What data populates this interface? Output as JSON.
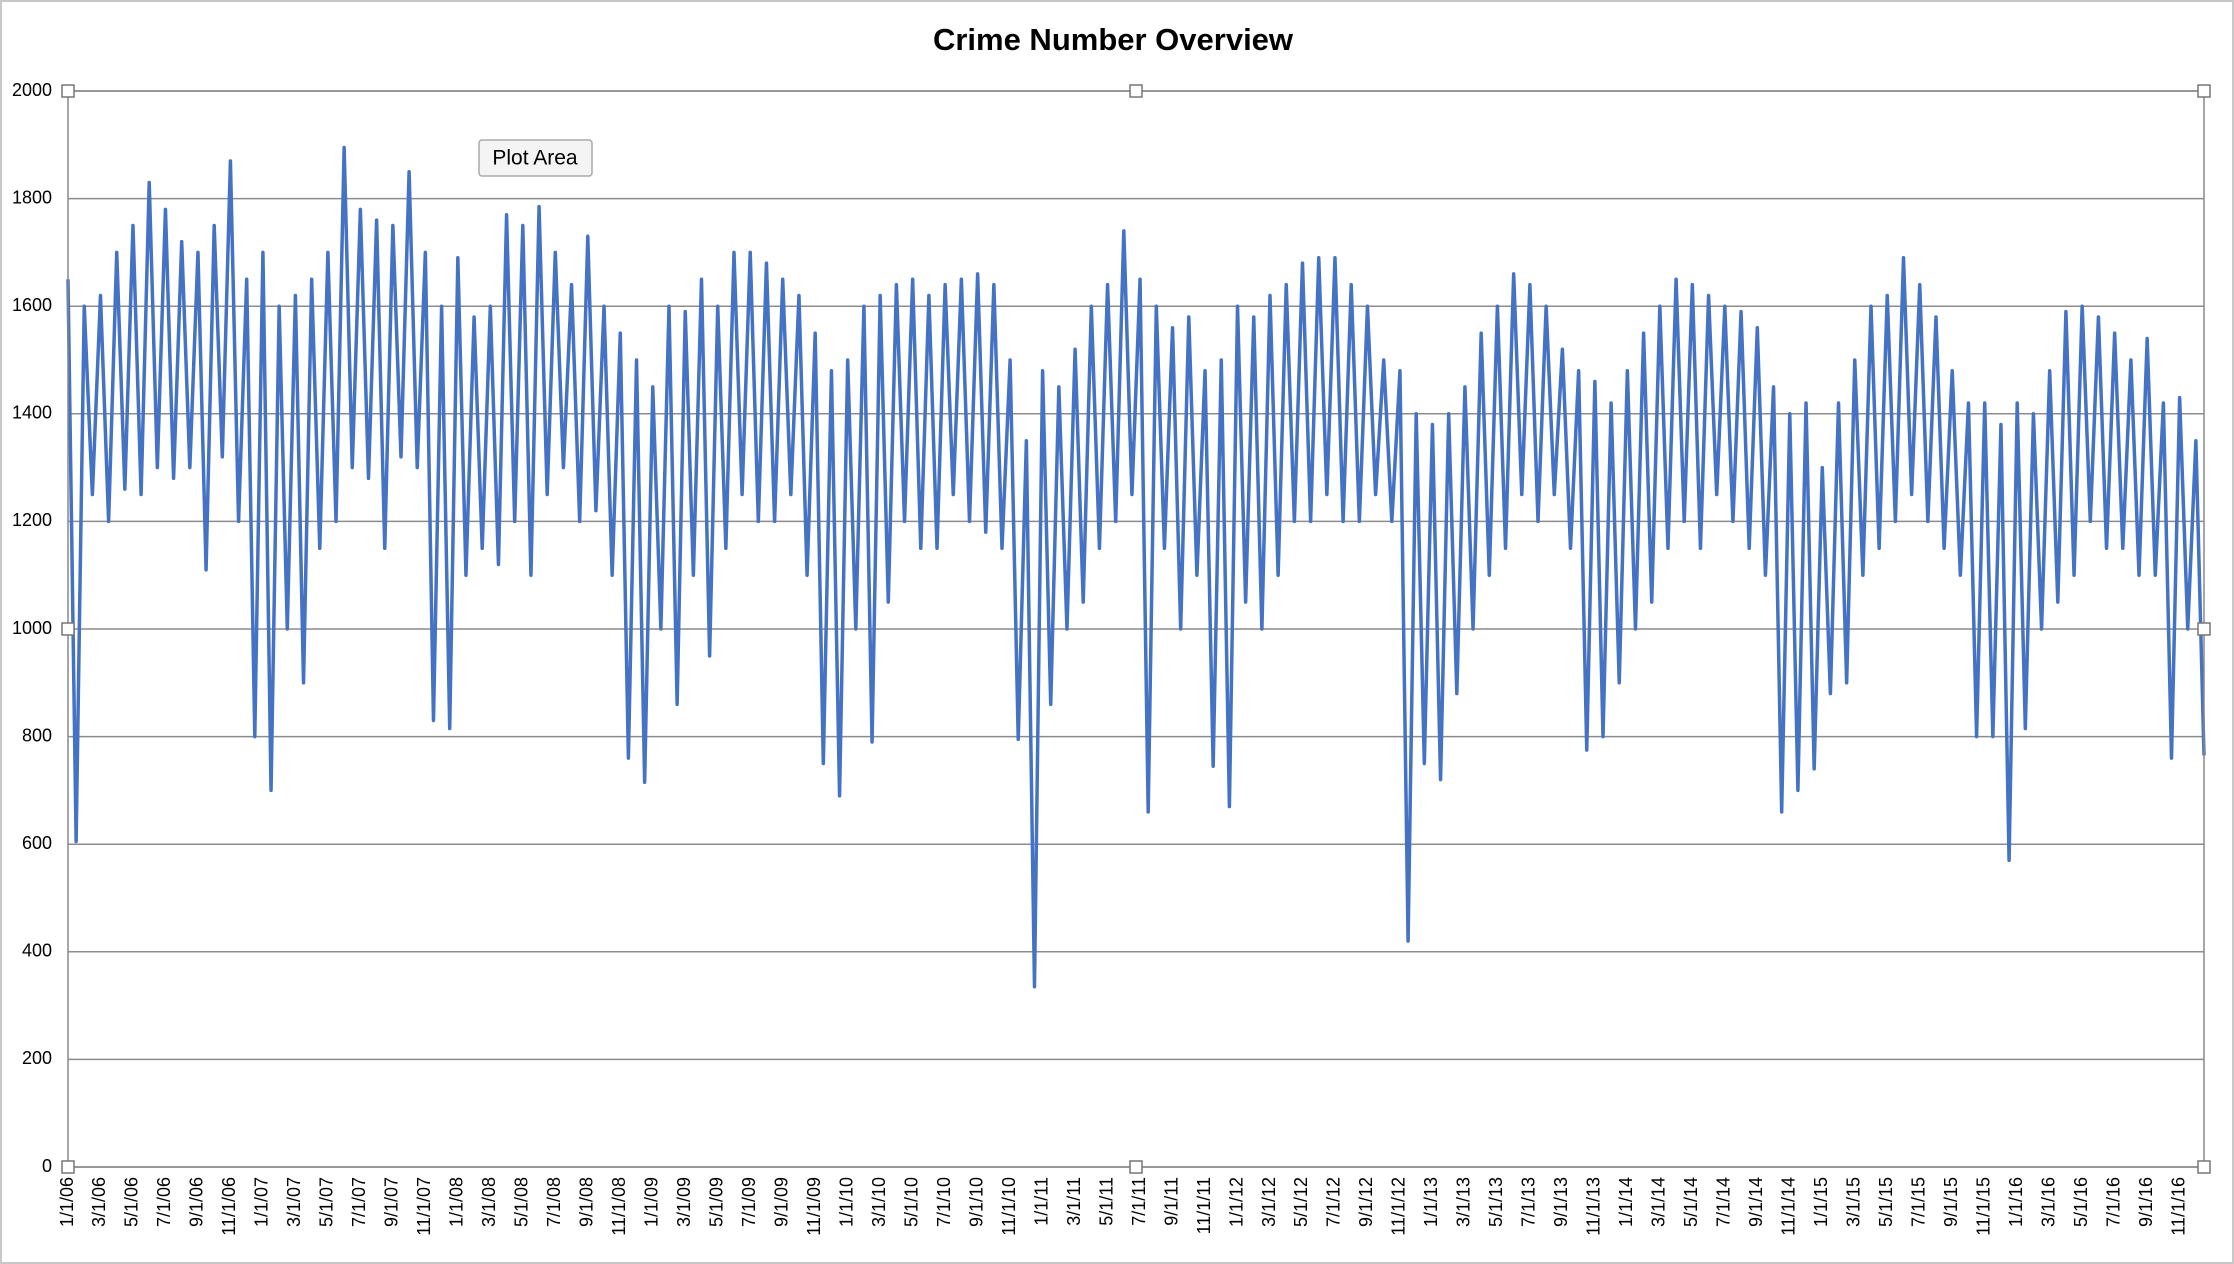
{
  "chart_data": {
    "type": "line",
    "title": "Crime Number Overview",
    "tooltip": "Plot Area",
    "color": "#4472c4",
    "grid": true,
    "ylim": [
      0,
      2000
    ],
    "yticks": [
      0,
      200,
      400,
      600,
      800,
      1000,
      1200,
      1400,
      1600,
      1800,
      2000
    ],
    "categories": [
      "1/1/06",
      null,
      null,
      null,
      "3/1/06",
      null,
      null,
      null,
      "5/1/06",
      null,
      null,
      null,
      "7/1/06",
      null,
      null,
      null,
      "9/1/06",
      null,
      null,
      null,
      "11/1/06",
      null,
      null,
      null,
      "1/1/07",
      null,
      null,
      null,
      "3/1/07",
      null,
      null,
      null,
      "5/1/07",
      null,
      null,
      null,
      "7/1/07",
      null,
      null,
      null,
      "9/1/07",
      null,
      null,
      null,
      "11/1/07",
      null,
      null,
      null,
      "1/1/08",
      null,
      null,
      null,
      "3/1/08",
      null,
      null,
      null,
      "5/1/08",
      null,
      null,
      null,
      "7/1/08",
      null,
      null,
      null,
      "9/1/08",
      null,
      null,
      null,
      "11/1/08",
      null,
      null,
      null,
      "1/1/09",
      null,
      null,
      null,
      "3/1/09",
      null,
      null,
      null,
      "5/1/09",
      null,
      null,
      null,
      "7/1/09",
      null,
      null,
      null,
      "9/1/09",
      null,
      null,
      null,
      "11/1/09",
      null,
      null,
      null,
      "1/1/10",
      null,
      null,
      null,
      "3/1/10",
      null,
      null,
      null,
      "5/1/10",
      null,
      null,
      null,
      "7/1/10",
      null,
      null,
      null,
      "9/1/10",
      null,
      null,
      null,
      "11/1/10",
      null,
      null,
      null,
      "1/1/11",
      null,
      null,
      null,
      "3/1/11",
      null,
      null,
      null,
      "5/1/11",
      null,
      null,
      null,
      "7/1/11",
      null,
      null,
      null,
      "9/1/11",
      null,
      null,
      null,
      "11/1/11",
      null,
      null,
      null,
      "1/1/12",
      null,
      null,
      null,
      "3/1/12",
      null,
      null,
      null,
      "5/1/12",
      null,
      null,
      null,
      "7/1/12",
      null,
      null,
      null,
      "9/1/12",
      null,
      null,
      null,
      "11/1/12",
      null,
      null,
      null,
      "1/1/13",
      null,
      null,
      null,
      "3/1/13",
      null,
      null,
      null,
      "5/1/13",
      null,
      null,
      null,
      "7/1/13",
      null,
      null,
      null,
      "9/1/13",
      null,
      null,
      null,
      "11/1/13",
      null,
      null,
      null,
      "1/1/14",
      null,
      null,
      null,
      "3/1/14",
      null,
      null,
      null,
      "5/1/14",
      null,
      null,
      null,
      "7/1/14",
      null,
      null,
      null,
      "9/1/14",
      null,
      null,
      null,
      "11/1/14",
      null,
      null,
      null,
      "1/1/15",
      null,
      null,
      null,
      "3/1/15",
      null,
      null,
      null,
      "5/1/15",
      null,
      null,
      null,
      "7/1/15",
      null,
      null,
      null,
      "9/1/15",
      null,
      null,
      null,
      "11/1/15",
      null,
      null,
      null,
      "1/1/16",
      null,
      null,
      null,
      "3/1/16",
      null,
      null,
      null,
      "5/1/16",
      null,
      null,
      null,
      "7/1/16",
      null,
      null,
      null,
      "9/1/16",
      null,
      null,
      null,
      "11/1/16",
      null,
      null,
      null
    ],
    "values": [
      1650,
      605,
      1600,
      1250,
      1620,
      1200,
      1700,
      1260,
      1750,
      1250,
      1830,
      1300,
      1780,
      1280,
      1720,
      1300,
      1700,
      1110,
      1750,
      1320,
      1870,
      1200,
      1650,
      800,
      1700,
      700,
      1600,
      1000,
      1620,
      900,
      1650,
      1150,
      1700,
      1200,
      1895,
      1300,
      1780,
      1280,
      1760,
      1150,
      1750,
      1320,
      1850,
      1300,
      1700,
      830,
      1600,
      815,
      1690,
      1100,
      1580,
      1150,
      1600,
      1120,
      1770,
      1200,
      1750,
      1100,
      1785,
      1250,
      1700,
      1300,
      1640,
      1200,
      1730,
      1220,
      1600,
      1100,
      1550,
      760,
      1500,
      715,
      1450,
      1000,
      1600,
      860,
      1590,
      1100,
      1650,
      950,
      1600,
      1150,
      1700,
      1250,
      1700,
      1200,
      1680,
      1200,
      1650,
      1250,
      1620,
      1100,
      1550,
      750,
      1480,
      690,
      1500,
      1000,
      1600,
      790,
      1620,
      1050,
      1640,
      1200,
      1650,
      1150,
      1620,
      1150,
      1640,
      1250,
      1650,
      1200,
      1660,
      1180,
      1640,
      1150,
      1500,
      795,
      1350,
      335,
      1480,
      860,
      1450,
      1000,
      1520,
      1050,
      1600,
      1150,
      1640,
      1200,
      1740,
      1250,
      1650,
      660,
      1600,
      1150,
      1560,
      1000,
      1580,
      1100,
      1480,
      745,
      1500,
      670,
      1600,
      1050,
      1580,
      1000,
      1620,
      1100,
      1640,
      1200,
      1680,
      1200,
      1690,
      1250,
      1690,
      1200,
      1640,
      1200,
      1600,
      1250,
      1500,
      1200,
      1480,
      420,
      1400,
      750,
      1380,
      720,
      1400,
      880,
      1450,
      1000,
      1550,
      1100,
      1600,
      1150,
      1660,
      1250,
      1640,
      1200,
      1600,
      1250,
      1520,
      1150,
      1480,
      775,
      1460,
      800,
      1420,
      900,
      1480,
      1000,
      1550,
      1050,
      1600,
      1150,
      1650,
      1200,
      1640,
      1150,
      1620,
      1250,
      1600,
      1200,
      1590,
      1150,
      1560,
      1100,
      1450,
      660,
      1400,
      700,
      1420,
      740,
      1300,
      880,
      1420,
      900,
      1500,
      1100,
      1600,
      1150,
      1620,
      1200,
      1690,
      1250,
      1640,
      1200,
      1580,
      1150,
      1480,
      1100,
      1420,
      800,
      1420,
      800,
      1380,
      570,
      1420,
      815,
      1400,
      1000,
      1480,
      1050,
      1590,
      1100,
      1600,
      1200,
      1580,
      1150,
      1550,
      1150,
      1500,
      1100,
      1540,
      1100,
      1420,
      760,
      1430,
      1000,
      1350,
      765
    ]
  }
}
